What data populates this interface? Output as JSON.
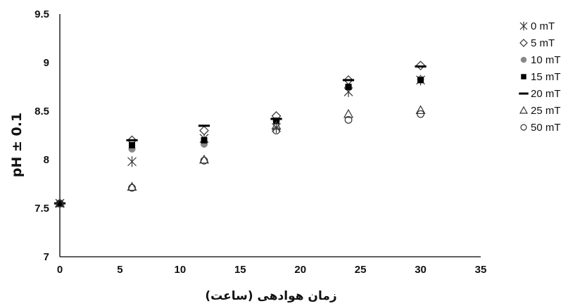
{
  "chart_data": {
    "type": "scatter",
    "xlabel": "زمان هوادهی (ساعت)",
    "ylabel": "pH ± 0.1",
    "xlim": [
      0,
      35
    ],
    "ylim": [
      7,
      9.5
    ],
    "x_ticks": [
      "0",
      "5",
      "10",
      "15",
      "20",
      "25",
      "30",
      "35"
    ],
    "y_ticks": [
      "7",
      "7.5",
      "8",
      "8.5",
      "9",
      "9.5"
    ],
    "grid": false,
    "legend_position": "right",
    "x": [
      0,
      6,
      12,
      18,
      24,
      30
    ],
    "series": [
      {
        "name": "0 mT",
        "marker": "asterisk",
        "color": "#333333",
        "values": [
          7.55,
          7.98,
          8.22,
          8.33,
          8.7,
          8.82
        ]
      },
      {
        "name": "5 mT",
        "marker": "diamond-open",
        "color": "#333333",
        "values": [
          7.55,
          8.2,
          8.3,
          8.45,
          8.82,
          8.97
        ]
      },
      {
        "name": "10 mT",
        "marker": "circle-filled",
        "color": "#888888",
        "values": [
          7.55,
          8.11,
          8.16,
          8.4,
          8.75,
          8.83
        ]
      },
      {
        "name": "15 mT",
        "marker": "square-filled",
        "color": "#000000",
        "values": [
          7.55,
          8.15,
          8.2,
          8.4,
          8.75,
          8.82
        ]
      },
      {
        "name": "20 mT",
        "marker": "dash",
        "color": "#000000",
        "values": [
          7.55,
          8.2,
          8.35,
          8.42,
          8.82,
          8.96
        ]
      },
      {
        "name": "25 mT",
        "marker": "triangle-open",
        "color": "#333333",
        "values": [
          7.55,
          7.72,
          8.0,
          8.35,
          8.47,
          8.51
        ]
      },
      {
        "name": "50 mT",
        "marker": "circle-open",
        "color": "#333333",
        "values": [
          7.55,
          7.71,
          7.99,
          8.3,
          8.41,
          8.47
        ]
      }
    ]
  }
}
